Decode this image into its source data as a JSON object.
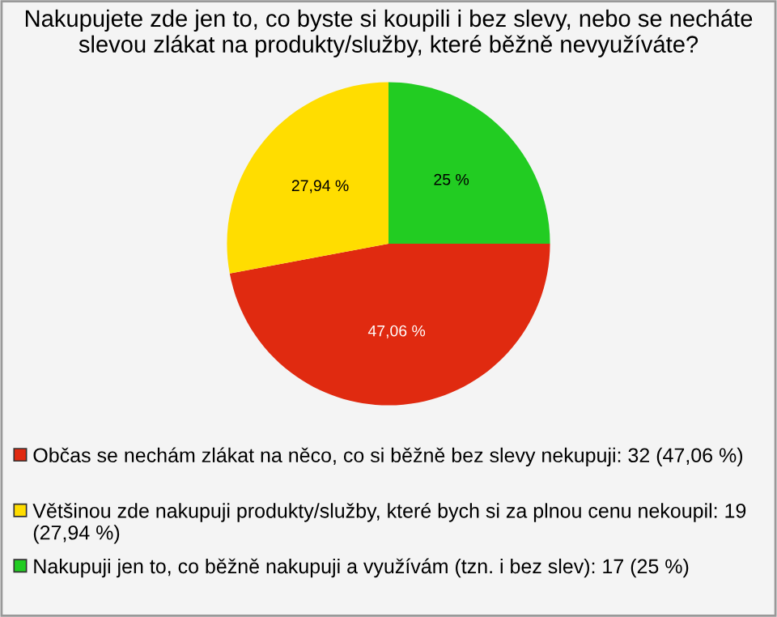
{
  "chart_data": {
    "type": "pie",
    "title": "Nakupujete zde jen to, co byste si koupili i bez slevy, nebo se necháte slevou zlákat na produkty/služby, které běžně nevyužíváte?",
    "categories": [
      "Občas se nechám zlákat na něco, co si běžně bez slevy nekupuji: 32 (47,06 %)",
      "Většinou zde nakupuji produkty/služby, které bych si za plnou cenu nekoupil: 19 (27,94 %)",
      "Nakupuji jen to, co běžně nakupuji a využívám (tzn. i bez slev): 17 (25 %)"
    ],
    "values": [
      47.06,
      27.94,
      25
    ],
    "colors": [
      "#e02a10",
      "#ffdd00",
      "#22cc22"
    ],
    "value_labels": [
      "47,06 %",
      "27,94 %",
      "25 %"
    ],
    "legend": "bottom"
  }
}
